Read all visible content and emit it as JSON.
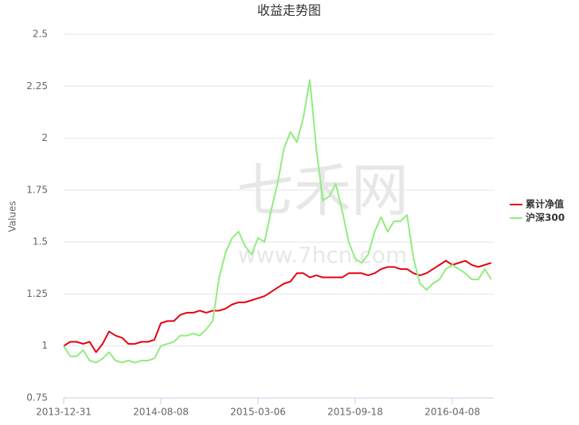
{
  "chart_data": {
    "type": "line",
    "title": "收益走势图",
    "y_label": "Values",
    "watermark": [
      "七禾网",
      "www.7hcn.com"
    ],
    "categories": [
      "2013-12-31",
      null,
      null,
      null,
      null,
      null,
      null,
      null,
      null,
      null,
      null,
      null,
      null,
      null,
      null,
      "2014-08-08",
      null,
      null,
      null,
      null,
      null,
      null,
      null,
      null,
      null,
      null,
      null,
      null,
      null,
      null,
      "2015-03-06",
      null,
      null,
      null,
      null,
      null,
      null,
      null,
      null,
      null,
      null,
      null,
      null,
      null,
      null,
      "2015-09-18",
      null,
      null,
      null,
      null,
      null,
      null,
      null,
      null,
      null,
      null,
      null,
      null,
      null,
      null,
      "2016-04-08",
      null,
      null,
      null,
      null,
      null,
      null
    ],
    "series": [
      {
        "name": "累计净值",
        "color": "#e60012",
        "values": [
          1.0,
          1.02,
          1.02,
          1.01,
          1.02,
          0.97,
          1.01,
          1.07,
          1.05,
          1.04,
          1.01,
          1.01,
          1.02,
          1.02,
          1.03,
          1.11,
          1.12,
          1.12,
          1.15,
          1.16,
          1.16,
          1.17,
          1.16,
          1.17,
          1.17,
          1.18,
          1.2,
          1.21,
          1.21,
          1.22,
          1.23,
          1.24,
          1.26,
          1.28,
          1.3,
          1.31,
          1.35,
          1.35,
          1.33,
          1.34,
          1.33,
          1.33,
          1.33,
          1.33,
          1.35,
          1.35,
          1.35,
          1.34,
          1.35,
          1.37,
          1.38,
          1.38,
          1.37,
          1.37,
          1.35,
          1.34,
          1.35,
          1.37,
          1.39,
          1.41,
          1.39,
          1.4,
          1.41,
          1.39,
          1.38,
          1.39,
          1.4
        ]
      },
      {
        "name": "沪深300",
        "color": "#90ed7d",
        "values": [
          1.0,
          0.95,
          0.95,
          0.98,
          0.93,
          0.92,
          0.94,
          0.97,
          0.93,
          0.92,
          0.93,
          0.92,
          0.93,
          0.93,
          0.94,
          1.0,
          1.01,
          1.02,
          1.05,
          1.05,
          1.06,
          1.05,
          1.08,
          1.12,
          1.33,
          1.45,
          1.52,
          1.55,
          1.48,
          1.44,
          1.52,
          1.5,
          1.65,
          1.78,
          1.95,
          2.03,
          1.98,
          2.1,
          2.28,
          1.95,
          1.7,
          1.72,
          1.78,
          1.65,
          1.5,
          1.42,
          1.4,
          1.44,
          1.55,
          1.62,
          1.55,
          1.6,
          1.6,
          1.63,
          1.42,
          1.3,
          1.27,
          1.3,
          1.32,
          1.37,
          1.39,
          1.37,
          1.35,
          1.32,
          1.32,
          1.37,
          1.32
        ]
      }
    ],
    "ylim": [
      0.75,
      2.5
    ],
    "yticks": [
      0.75,
      1,
      1.25,
      1.5,
      1.75,
      2,
      2.25,
      2.5
    ],
    "grid": true,
    "legend": "right"
  }
}
